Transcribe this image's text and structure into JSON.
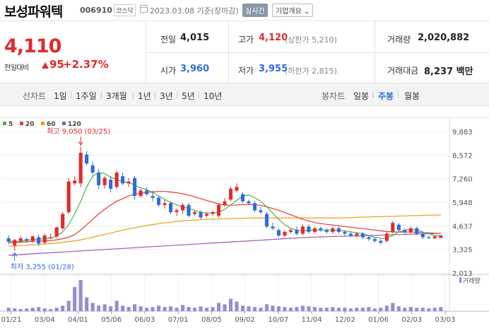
{
  "header": {
    "name": "보성파워텍",
    "code": "006910",
    "market": "코스닥",
    "date": "2023.03.08",
    "date_suffix": "기준(장마감)",
    "realtime_label": "실시간",
    "company_label": "기업개요 ⌄"
  },
  "price": {
    "current": "4,110",
    "change_label": "전일대비",
    "change": "95",
    "change_pct": "+2.37%"
  },
  "stats": {
    "prev_label": "전일",
    "prev_val": "4,015",
    "high_label": "고가",
    "high_val": "4,120",
    "high_sub": "(상한가 5,210)",
    "volume_label": "거래량",
    "volume_val": "2,020,882",
    "open_label": "시가",
    "open_val": "3,960",
    "low_label": "저가",
    "low_val": "3,955",
    "low_sub": "(하한가 2,815)",
    "amount_label": "거래대금",
    "amount_val": "8,237 백만"
  },
  "tabs": {
    "line_title": "선차트",
    "line_tabs": [
      "1일",
      "1주일",
      "3개월",
      "1년",
      "3년",
      "5년",
      "10년"
    ],
    "candle_title": "봉차트",
    "candle_tabs": [
      "일봉",
      "주봉",
      "월봉"
    ],
    "active_candle": 1
  },
  "colors": {
    "up": "#e12b2b",
    "down": "#2f6bd8",
    "ma5": "#4caf50",
    "ma20": "#e53935",
    "ma60": "#f39c12",
    "ma120": "#9b59b6",
    "volume": "#9b8bd0"
  },
  "chart_data": {
    "type": "candlestick",
    "legend": [
      "5",
      "20",
      "60",
      "120"
    ],
    "y_ticks": [
      "9,883",
      "8,572",
      "7,260",
      "5,948",
      "4,637",
      "3,325",
      "2,013"
    ],
    "y_tick_values": [
      9883,
      8572,
      7260,
      5948,
      4637,
      3325,
      2013
    ],
    "ylim": [
      2013,
      9883
    ],
    "x_ticks": [
      "01/21",
      "03/04",
      "04/01",
      "05/06",
      "06/03",
      "07/01",
      "08/05",
      "09/02",
      "10/07",
      "11/04",
      "12/02",
      "01/06",
      "02/03",
      "03/03"
    ],
    "high_annotation": "최고 9,050 (03/25)",
    "low_annotation": "최저 3,255 (01/28)",
    "volume_label": "거래량",
    "candles": [
      {
        "o": 3950,
        "h": 4100,
        "l": 3600,
        "c": 3750
      },
      {
        "o": 3550,
        "h": 3900,
        "l": 3255,
        "c": 3850
      },
      {
        "o": 3800,
        "h": 4050,
        "l": 3700,
        "c": 3950
      },
      {
        "o": 3900,
        "h": 4000,
        "l": 3700,
        "c": 3800
      },
      {
        "o": 3800,
        "h": 4100,
        "l": 3700,
        "c": 4050
      },
      {
        "o": 4000,
        "h": 4150,
        "l": 3500,
        "c": 3650
      },
      {
        "o": 3700,
        "h": 4200,
        "l": 3600,
        "c": 4100
      },
      {
        "o": 3950,
        "h": 4200,
        "l": 3900,
        "c": 4000
      },
      {
        "o": 4050,
        "h": 4600,
        "l": 4000,
        "c": 4550
      },
      {
        "o": 4500,
        "h": 5400,
        "l": 4400,
        "c": 5300
      },
      {
        "o": 5400,
        "h": 7300,
        "l": 5300,
        "c": 7100
      },
      {
        "o": 7000,
        "h": 7400,
        "l": 6900,
        "c": 7150
      },
      {
        "o": 7000,
        "h": 9050,
        "l": 6800,
        "c": 8700
      },
      {
        "o": 8600,
        "h": 8800,
        "l": 8000,
        "c": 8100
      },
      {
        "o": 8000,
        "h": 8200,
        "l": 7500,
        "c": 7600
      },
      {
        "o": 7600,
        "h": 7800,
        "l": 6700,
        "c": 6900
      },
      {
        "o": 6900,
        "h": 7400,
        "l": 6700,
        "c": 7300
      },
      {
        "o": 7200,
        "h": 7400,
        "l": 6500,
        "c": 6700
      },
      {
        "o": 6800,
        "h": 7700,
        "l": 6700,
        "c": 7600
      },
      {
        "o": 7400,
        "h": 7600,
        "l": 6900,
        "c": 7000
      },
      {
        "o": 7000,
        "h": 7300,
        "l": 6800,
        "c": 7100
      },
      {
        "o": 7300,
        "h": 7400,
        "l": 6100,
        "c": 6300
      },
      {
        "o": 6300,
        "h": 6700,
        "l": 6200,
        "c": 6600
      },
      {
        "o": 6600,
        "h": 6800,
        "l": 6300,
        "c": 6400
      },
      {
        "o": 6300,
        "h": 6600,
        "l": 6000,
        "c": 6200
      },
      {
        "o": 6200,
        "h": 6300,
        "l": 5700,
        "c": 5800
      },
      {
        "o": 5800,
        "h": 6100,
        "l": 5600,
        "c": 5900
      },
      {
        "o": 5900,
        "h": 6000,
        "l": 5300,
        "c": 5400
      },
      {
        "o": 5400,
        "h": 5600,
        "l": 5200,
        "c": 5500
      },
      {
        "o": 5500,
        "h": 5900,
        "l": 5300,
        "c": 5800
      },
      {
        "o": 5800,
        "h": 5900,
        "l": 5100,
        "c": 5200
      },
      {
        "o": 5300,
        "h": 5500,
        "l": 5200,
        "c": 5400
      },
      {
        "o": 5400,
        "h": 5500,
        "l": 5000,
        "c": 5100
      },
      {
        "o": 5200,
        "h": 5400,
        "l": 5100,
        "c": 5300
      },
      {
        "o": 5300,
        "h": 5500,
        "l": 5200,
        "c": 5400
      },
      {
        "o": 5200,
        "h": 5900,
        "l": 5100,
        "c": 5800
      },
      {
        "o": 5800,
        "h": 6200,
        "l": 5700,
        "c": 6000
      },
      {
        "o": 6100,
        "h": 6800,
        "l": 6000,
        "c": 6700
      },
      {
        "o": 6600,
        "h": 7000,
        "l": 6500,
        "c": 6800
      },
      {
        "o": 6400,
        "h": 6500,
        "l": 5900,
        "c": 6000
      },
      {
        "o": 6000,
        "h": 6100,
        "l": 5800,
        "c": 5900
      },
      {
        "o": 5900,
        "h": 6000,
        "l": 5400,
        "c": 5500
      },
      {
        "o": 5500,
        "h": 5700,
        "l": 5300,
        "c": 5400
      },
      {
        "o": 5300,
        "h": 5400,
        "l": 4500,
        "c": 4600
      },
      {
        "o": 4600,
        "h": 4800,
        "l": 4400,
        "c": 4500
      },
      {
        "o": 4400,
        "h": 4500,
        "l": 4000,
        "c": 4100
      },
      {
        "o": 4100,
        "h": 4400,
        "l": 4000,
        "c": 4300
      },
      {
        "o": 4300,
        "h": 4500,
        "l": 4200,
        "c": 4400
      },
      {
        "o": 4400,
        "h": 4600,
        "l": 4100,
        "c": 4200
      },
      {
        "o": 4200,
        "h": 4700,
        "l": 4100,
        "c": 4600
      },
      {
        "o": 4600,
        "h": 4700,
        "l": 4200,
        "c": 4300
      },
      {
        "o": 4300,
        "h": 4600,
        "l": 4200,
        "c": 4500
      },
      {
        "o": 4500,
        "h": 4600,
        "l": 4300,
        "c": 4400
      },
      {
        "o": 4400,
        "h": 4500,
        "l": 4200,
        "c": 4300
      },
      {
        "o": 4300,
        "h": 4600,
        "l": 4200,
        "c": 4500
      },
      {
        "o": 4500,
        "h": 4600,
        "l": 4200,
        "c": 4300
      },
      {
        "o": 4300,
        "h": 4400,
        "l": 4100,
        "c": 4200
      },
      {
        "o": 4200,
        "h": 4300,
        "l": 4000,
        "c": 4100
      },
      {
        "o": 4100,
        "h": 4300,
        "l": 4000,
        "c": 4200
      },
      {
        "o": 4200,
        "h": 4300,
        "l": 3900,
        "c": 4000
      },
      {
        "o": 4000,
        "h": 4100,
        "l": 3800,
        "c": 3900
      },
      {
        "o": 3900,
        "h": 4000,
        "l": 3700,
        "c": 3800
      },
      {
        "o": 3800,
        "h": 3900,
        "l": 3600,
        "c": 3700
      },
      {
        "o": 3800,
        "h": 4300,
        "l": 3700,
        "c": 4200
      },
      {
        "o": 4300,
        "h": 4900,
        "l": 4200,
        "c": 4800
      },
      {
        "o": 4700,
        "h": 4800,
        "l": 4300,
        "c": 4400
      },
      {
        "o": 4400,
        "h": 4500,
        "l": 4200,
        "c": 4300
      },
      {
        "o": 4300,
        "h": 4600,
        "l": 4200,
        "c": 4500
      },
      {
        "o": 4500,
        "h": 4600,
        "l": 4100,
        "c": 4200
      },
      {
        "o": 4200,
        "h": 4300,
        "l": 3900,
        "c": 4000
      },
      {
        "o": 4000,
        "h": 4100,
        "l": 3900,
        "c": 3950
      },
      {
        "o": 3950,
        "h": 4100,
        "l": 3900,
        "c": 4050
      },
      {
        "o": 3960,
        "h": 4120,
        "l": 3955,
        "c": 4110
      }
    ],
    "ma5": [
      3800,
      3750,
      3780,
      3830,
      3870,
      3900,
      3920,
      3950,
      4050,
      4300,
      4700,
      5300,
      6000,
      6800,
      7400,
      7600,
      7550,
      7350,
      7200,
      7100,
      7050,
      6900,
      6750,
      6650,
      6500,
      6300,
      6100,
      5950,
      5800,
      5700,
      5600,
      5500,
      5400,
      5350,
      5350,
      5400,
      5550,
      5800,
      6050,
      6300,
      6350,
      6200,
      6000,
      5700,
      5350,
      5000,
      4700,
      4500,
      4400,
      4350,
      4400,
      4400,
      4400,
      4400,
      4400,
      4380,
      4350,
      4300,
      4250,
      4200,
      4100,
      4000,
      3950,
      3950,
      4100,
      4300,
      4400,
      4450,
      4400,
      4300,
      4200,
      4100,
      4080
    ],
    "ma20": [
      3700,
      3720,
      3730,
      3750,
      3770,
      3790,
      3800,
      3820,
      3860,
      3920,
      4000,
      4150,
      4400,
      4700,
      5000,
      5300,
      5550,
      5800,
      6000,
      6150,
      6300,
      6400,
      6450,
      6500,
      6520,
      6550,
      6550,
      6520,
      6480,
      6420,
      6350,
      6250,
      6150,
      6050,
      5950,
      5850,
      5800,
      5780,
      5800,
      5820,
      5830,
      5820,
      5780,
      5700,
      5600,
      5500,
      5380,
      5250,
      5130,
      5000,
      4900,
      4820,
      4760,
      4720,
      4680,
      4640,
      4600,
      4560,
      4520,
      4480,
      4440,
      4400,
      4360,
      4320,
      4300,
      4290,
      4290,
      4290,
      4280,
      4270,
      4250,
      4230,
      4210
    ],
    "ma60": [
      3500,
      3520,
      3540,
      3560,
      3580,
      3600,
      3620,
      3650,
      3680,
      3720,
      3760,
      3800,
      3860,
      3930,
      4000,
      4080,
      4160,
      4240,
      4320,
      4400,
      4470,
      4540,
      4600,
      4660,
      4710,
      4760,
      4800,
      4840,
      4880,
      4910,
      4940,
      4960,
      4980,
      5000,
      5010,
      5020,
      5030,
      5040,
      5050,
      5060,
      5070,
      5080,
      5080,
      5080,
      5080,
      5080,
      5080,
      5080,
      5080,
      5080,
      5080,
      5080,
      5080,
      5080,
      5080,
      5080,
      5090,
      5100,
      5110,
      5120,
      5130,
      5140,
      5150,
      5160,
      5170,
      5180,
      5190,
      5200,
      5210,
      5220,
      5230,
      5235,
      5240
    ],
    "ma120": [
      3000,
      3020,
      3040,
      3060,
      3080,
      3100,
      3120,
      3140,
      3160,
      3180,
      3200,
      3220,
      3240,
      3260,
      3280,
      3300,
      3320,
      3340,
      3360,
      3380,
      3400,
      3420,
      3440,
      3460,
      3480,
      3500,
      3520,
      3540,
      3560,
      3580,
      3600,
      3620,
      3640,
      3660,
      3680,
      3700,
      3720,
      3740,
      3760,
      3780,
      3800,
      3820,
      3840,
      3860,
      3880,
      3900,
      3920,
      3940,
      3960,
      3980,
      4000,
      4010,
      4020,
      4030,
      4040,
      4050,
      4060,
      4070,
      4080,
      4090,
      4100,
      4110,
      4120,
      4130,
      4140,
      4150,
      4160,
      4170,
      4180,
      4190,
      4200,
      4210,
      4220
    ],
    "volumes": [
      5,
      4,
      3,
      4,
      5,
      6,
      4,
      3,
      5,
      8,
      15,
      35,
      45,
      20,
      12,
      8,
      10,
      7,
      15,
      8,
      6,
      10,
      7,
      5,
      6,
      8,
      6,
      7,
      5,
      9,
      6,
      5,
      7,
      5,
      6,
      12,
      10,
      18,
      14,
      8,
      7,
      6,
      5,
      10,
      8,
      7,
      6,
      5,
      6,
      8,
      7,
      6,
      5,
      5,
      6,
      5,
      5,
      4,
      5,
      5,
      6,
      4,
      5,
      8,
      12,
      7,
      5,
      6,
      5,
      5,
      4,
      5,
      6
    ]
  }
}
